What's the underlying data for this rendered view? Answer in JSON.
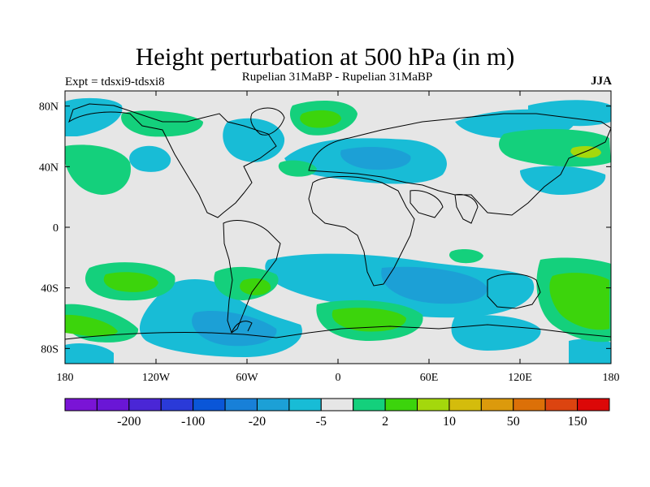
{
  "title": "Height perturbation at 500 hPa (in m)",
  "subtitle": "Rupelian  31MaBP - Rupelian  31MaBP",
  "experiment_label": "Expt = tdsxi9-tdsxi8",
  "season_label": "JJA",
  "map": {
    "projection": "cylindrical-equidistant",
    "lon_range": [
      -180,
      180
    ],
    "lat_range": [
      -90,
      90
    ],
    "x_ticks": [
      {
        "value": -180,
        "label": "180"
      },
      {
        "value": -120,
        "label": "120W"
      },
      {
        "value": -60,
        "label": "60W"
      },
      {
        "value": 0,
        "label": "0"
      },
      {
        "value": 60,
        "label": "60E"
      },
      {
        "value": 120,
        "label": "120E"
      },
      {
        "value": 180,
        "label": "180"
      }
    ],
    "y_ticks": [
      {
        "value": 80,
        "label": "80N"
      },
      {
        "value": 40,
        "label": "40N"
      },
      {
        "value": 0,
        "label": "0"
      },
      {
        "value": -40,
        "label": "40S"
      },
      {
        "value": -80,
        "label": "80S"
      }
    ],
    "background_color": "#e6e6e6",
    "coastline_color": "#000000"
  },
  "colorbar": {
    "colors": [
      "#7a14d6",
      "#6a16d6",
      "#4a26d6",
      "#2a3ad8",
      "#0a56d8",
      "#1880d8",
      "#1ca0d6",
      "#18bcd6",
      "#e6e6e6",
      "#14d07c",
      "#3cd40c",
      "#a4d80c",
      "#d4bc0c",
      "#dc9a0c",
      "#dc7008",
      "#dc4410",
      "#dc0808"
    ],
    "labels": [
      {
        "after_box": 2,
        "text": "-200"
      },
      {
        "after_box": 4,
        "text": "-100"
      },
      {
        "after_box": 6,
        "text": "-20"
      },
      {
        "after_box": 8,
        "text": "-5"
      },
      {
        "after_box": 10,
        "text": "2"
      },
      {
        "after_box": 12,
        "text": "10"
      },
      {
        "after_box": 14,
        "text": "50"
      },
      {
        "after_box": 16,
        "text": "150"
      }
    ]
  }
}
